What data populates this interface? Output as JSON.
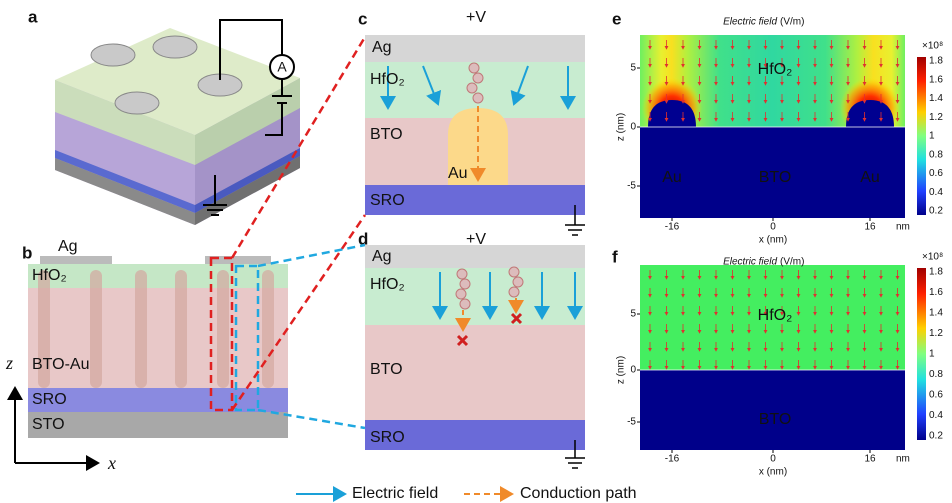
{
  "panel_labels": [
    "a",
    "b",
    "c",
    "d",
    "e",
    "f"
  ],
  "a": {
    "ammeter": "A"
  },
  "b": {
    "layers": [
      "Ag",
      "HfO₂",
      "BTO-Au",
      "SRO",
      "STO"
    ],
    "z_axis": "z",
    "x_axis": "x"
  },
  "c": {
    "voltage": "+V",
    "layers": [
      "Ag",
      "HfO₂",
      "BTO",
      "SRO"
    ],
    "pillar": "Au"
  },
  "d": {
    "voltage": "+V",
    "layers": [
      "Ag",
      "HfO₂",
      "BTO",
      "SRO"
    ]
  },
  "e": {
    "title": "Electric field",
    "unit": "(V/m)",
    "scale": "×10⁸",
    "colorbar_ticks": [
      1.8,
      1.6,
      1.4,
      1.2,
      1,
      0.8,
      0.6,
      0.4,
      0.2
    ],
    "y_label": "z (nm)",
    "x_label": "x (nm)",
    "y_ticks": [
      5,
      0,
      -5
    ],
    "x_ticks": [
      -16,
      0,
      16
    ],
    "x_unit": "nm",
    "regions": [
      "HfO₂",
      "Au",
      "BTO",
      "Au"
    ]
  },
  "f": {
    "title": "Electric field",
    "unit": "(V/m)",
    "scale": "×10⁸",
    "colorbar_ticks": [
      1.8,
      1.6,
      1.4,
      1.2,
      1,
      0.8,
      0.6,
      0.4,
      0.2
    ],
    "y_label": "z (nm)",
    "x_label": "x (nm)",
    "y_ticks": [
      5,
      0,
      -5
    ],
    "x_ticks": [
      -16,
      0,
      16
    ],
    "x_unit": "nm",
    "regions": [
      "HfO₂",
      "BTO"
    ]
  },
  "legend": [
    "Electric field",
    "Conduction path"
  ]
}
